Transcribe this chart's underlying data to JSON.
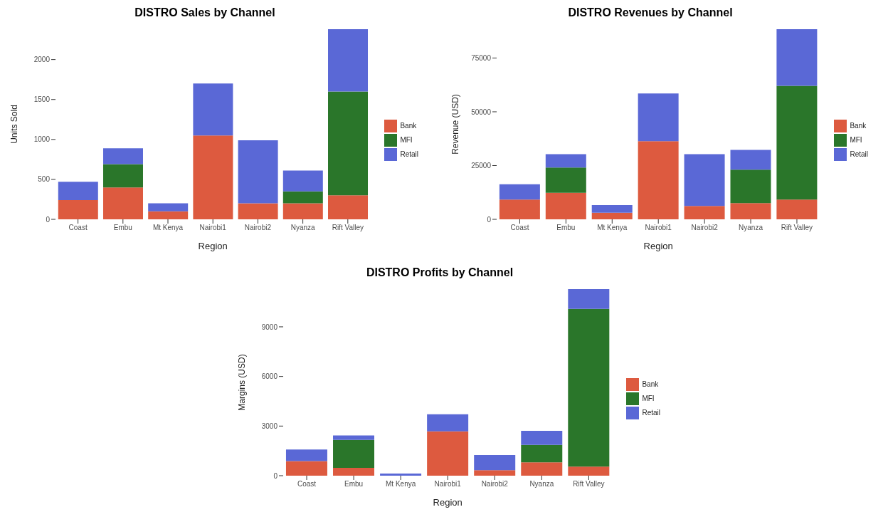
{
  "chart_data": [
    {
      "type": "bar",
      "title": "DISTRO Sales by Channel",
      "xlabel": "Region",
      "ylabel": "Units Sold",
      "stacked": true,
      "legend": "right",
      "grid": false,
      "categories": [
        "Coast",
        "Embu",
        "Mt Kenya",
        "Nairobi1",
        "Nairobi2",
        "Nyanza",
        "Rift Valley"
      ],
      "ylim": [
        0,
        2380
      ],
      "yticks": [
        0,
        500,
        1000,
        1500,
        2000
      ],
      "series": [
        {
          "name": "Bank",
          "color": "#dd5a3f",
          "values": [
            240,
            400,
            100,
            1050,
            200,
            200,
            300
          ]
        },
        {
          "name": "MFI",
          "color": "#2a762a",
          "values": [
            null,
            290,
            null,
            null,
            null,
            150,
            1300
          ]
        },
        {
          "name": "Retail",
          "color": "#5a68d6",
          "values": [
            230,
            200,
            100,
            650,
            790,
            260,
            780
          ]
        }
      ]
    },
    {
      "type": "bar",
      "title": "DISTRO Revenues by Channel",
      "xlabel": "Region",
      "ylabel": "Revenue (USD)",
      "stacked": true,
      "legend": "right",
      "grid": false,
      "categories": [
        "Coast",
        "Embu",
        "Mt Kenya",
        "Nairobi1",
        "Nairobi2",
        "Nyanza",
        "Rift Valley"
      ],
      "ylim": [
        0,
        88400
      ],
      "yticks": [
        0,
        25000,
        50000,
        75000
      ],
      "series": [
        {
          "name": "Bank",
          "color": "#dd5a3f",
          "values": [
            9200,
            12300,
            3100,
            36300,
            6200,
            7500,
            9200
          ]
        },
        {
          "name": "MFI",
          "color": "#2a762a",
          "values": [
            null,
            11800,
            null,
            null,
            null,
            15600,
            52900
          ]
        },
        {
          "name": "Retail",
          "color": "#5a68d6",
          "values": [
            7100,
            6200,
            3500,
            22200,
            24100,
            9200,
            26300
          ]
        }
      ]
    },
    {
      "type": "bar",
      "title": "DISTRO Profits by Channel",
      "xlabel": "Region",
      "ylabel": "Margins (USD)",
      "stacked": true,
      "legend": "right",
      "grid": false,
      "categories": [
        "Coast",
        "Embu",
        "Mt Kenya",
        "Nairobi1",
        "Nairobi2",
        "Nyanza",
        "Rift Valley"
      ],
      "ylim": [
        0,
        11280
      ],
      "yticks": [
        0,
        3000,
        6000,
        9000
      ],
      "series": [
        {
          "name": "Bank",
          "color": "#dd5a3f",
          "values": [
            880,
            470,
            null,
            2680,
            330,
            810,
            550
          ]
        },
        {
          "name": "MFI",
          "color": "#2a762a",
          "values": [
            null,
            1690,
            null,
            null,
            null,
            1050,
            9540
          ]
        },
        {
          "name": "Retail",
          "color": "#5a68d6",
          "values": [
            700,
            270,
            130,
            1030,
            920,
            850,
            1190
          ]
        }
      ]
    }
  ]
}
